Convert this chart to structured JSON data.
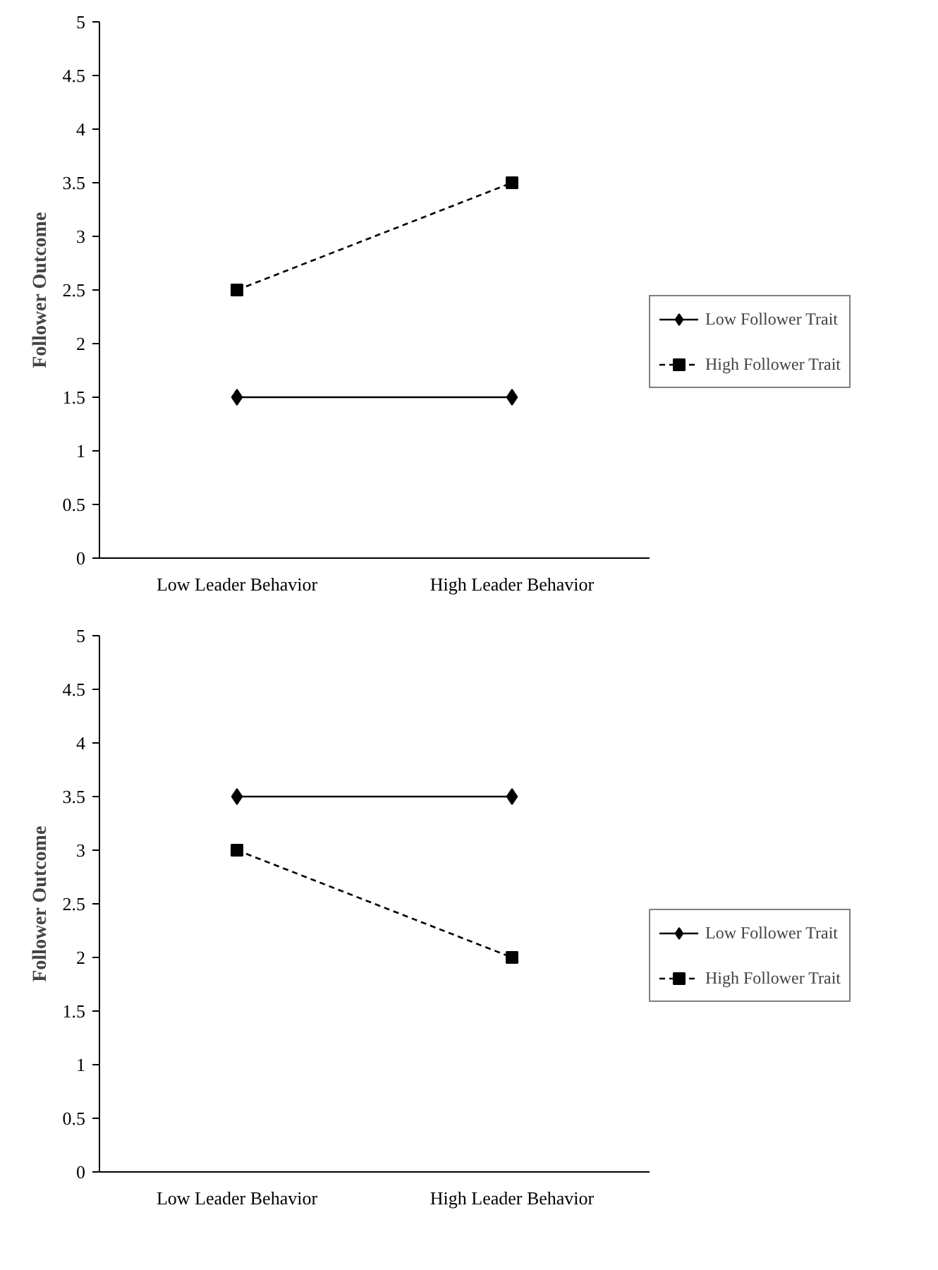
{
  "chart_data": [
    {
      "type": "line",
      "categories": [
        "Low Leader Behavior",
        "High Leader Behavior"
      ],
      "ylabel": "Follower Outcome",
      "ylim": [
        0,
        5
      ],
      "yticks": [
        0,
        0.5,
        1,
        1.5,
        2,
        2.5,
        3,
        3.5,
        4,
        4.5,
        5
      ],
      "grid": false,
      "legend": "right",
      "series": [
        {
          "name": "Low Follower Trait",
          "color": "#000000",
          "marker": "diamond",
          "line_style": "solid",
          "values": [
            1.5,
            1.5
          ]
        },
        {
          "name": "High Follower Trait",
          "color": "#000000",
          "marker": "square",
          "line_style": "dashed",
          "values": [
            2.5,
            3.5
          ]
        }
      ]
    },
    {
      "type": "line",
      "categories": [
        "Low Leader Behavior",
        "High Leader Behavior"
      ],
      "ylabel": "Follower Outcome",
      "ylim": [
        0,
        5
      ],
      "yticks": [
        0,
        0.5,
        1,
        1.5,
        2,
        2.5,
        3,
        3.5,
        4,
        4.5,
        5
      ],
      "grid": false,
      "legend": "right",
      "series": [
        {
          "name": "Low Follower Trait",
          "color": "#000000",
          "marker": "diamond",
          "line_style": "solid",
          "values": [
            3.5,
            3.5
          ]
        },
        {
          "name": "High Follower Trait",
          "color": "#000000",
          "marker": "square",
          "line_style": "dashed",
          "values": [
            3.0,
            2.0
          ]
        }
      ]
    }
  ]
}
